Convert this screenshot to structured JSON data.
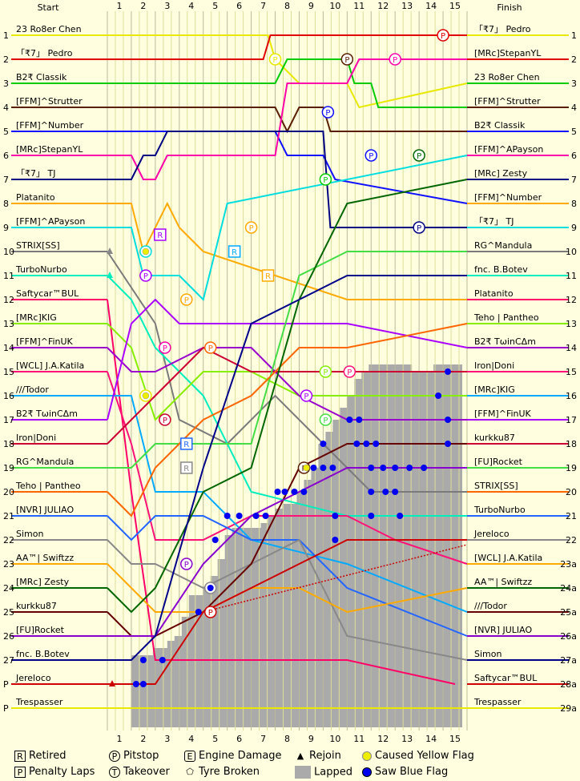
{
  "chart_data": {
    "type": "line",
    "header": {
      "start": "Start",
      "finish": "Finish"
    },
    "laps": [
      "1",
      "2",
      "3",
      "4",
      "5",
      "6",
      "7",
      "8",
      "9",
      "10",
      "11",
      "12",
      "13",
      "14",
      "15"
    ],
    "start_positions": [
      "1",
      "2",
      "3",
      "4",
      "5",
      "6",
      "7",
      "8",
      "9",
      "10",
      "11",
      "12",
      "13",
      "14",
      "15",
      "16",
      "17",
      "18",
      "19",
      "20",
      "21",
      "22",
      "23",
      "24",
      "25",
      "26",
      "27",
      "P",
      "P"
    ],
    "start_drivers": [
      "23 Ro8er Chen",
      "「₹7」 Pedro",
      "B2₹ Classik",
      "[FFM]^Strutter",
      "[FFM]^Number",
      "[MRc]StepanYL",
      "「₹7」 TJ",
      "Platanito",
      "[FFM]^APayson",
      "STRIX[SS]",
      "TurboNurbo",
      "Saftycar™BUL",
      "[MRc]KIG",
      "[FFM]^FinUK",
      "[WCL] J.A.Katila",
      "///Todor",
      "B2₹ TωinCΔm",
      "Iron|Doni",
      "RG^Mandula",
      "Teho | Pantheo",
      "[NVR] JULIAO",
      "Simon",
      "AA™| Swiftzz",
      "[MRc] Zesty",
      "kurkku87",
      "[FU]Rocket",
      "fnc. B.Botev",
      "Jereloco",
      "Trespasser"
    ],
    "finish_positions": [
      "1",
      "2",
      "3",
      "4",
      "5",
      "6",
      "7",
      "8",
      "9",
      "10",
      "11",
      "12",
      "13",
      "14",
      "15",
      "16",
      "17",
      "18",
      "19",
      "20",
      "21",
      "22",
      "23a",
      "24a",
      "25a",
      "26a",
      "27a",
      "28a",
      "29a"
    ],
    "finish_drivers": [
      "「₹7」 Pedro",
      "[MRc]StepanYL",
      "23 Ro8er Chen",
      "[FFM]^Strutter",
      "B2₹ Classik",
      "[FFM]^APayson",
      "[MRc] Zesty",
      "[FFM]^Number",
      "「₹7」 TJ",
      "RG^Mandula",
      "fnc. B.Botev",
      "Platanito",
      "Teho | Pantheo",
      "B2₹ TωinCΔm",
      "Iron|Doni",
      "[MRc]KIG",
      "[FFM]^FinUK",
      "kurkku87",
      "[FU]Rocket",
      "STRIX[SS]",
      "TurboNurbo",
      "Jereloco",
      "[WCL] J.A.Katila",
      "AA™| Swiftzz",
      "///Todor",
      "[NVR] JULIAO",
      "Simon",
      "Saftycar™BUL",
      "Trespasser"
    ],
    "colors": [
      "#e8e800",
      "#e00000",
      "#00cc00",
      "#5a1f00",
      "#1010ff",
      "#ff00aa",
      "#000080",
      "#ffaa00",
      "#00dddd",
      "#7a7a7a",
      "#00eebb",
      "#ff0066",
      "#88ee00",
      "#9900cc",
      "#ff1177",
      "#00aaff",
      "#aa00ff",
      "#cc0033",
      "#44dd44",
      "#ff6600",
      "#2266ff",
      "#888888",
      "#ffaa00",
      "#006600",
      "#660000",
      "#8800cc",
      "#000088",
      "#cc0000",
      "#e8e800"
    ],
    "traces": [
      [
        [
          0,
          1
        ],
        [
          6.7,
          1
        ],
        [
          7,
          2
        ],
        [
          8,
          3
        ],
        [
          10,
          3
        ],
        [
          10.5,
          4
        ],
        [
          15,
          3
        ]
      ],
      [
        [
          0,
          2
        ],
        [
          6.5,
          2
        ],
        [
          6.8,
          1
        ],
        [
          15,
          1
        ]
      ],
      [
        [
          0,
          3
        ],
        [
          7,
          3
        ],
        [
          7.5,
          2
        ],
        [
          10,
          2
        ],
        [
          10.3,
          3
        ],
        [
          11,
          3
        ],
        [
          11.3,
          4
        ],
        [
          15,
          4
        ]
      ],
      [
        [
          0,
          4
        ],
        [
          7,
          4
        ],
        [
          7.5,
          5
        ],
        [
          8,
          4
        ],
        [
          9,
          4
        ],
        [
          9.3,
          5
        ],
        [
          15,
          5
        ]
      ],
      [
        [
          0,
          5
        ],
        [
          7,
          5
        ],
        [
          7.5,
          6
        ],
        [
          9,
          6
        ],
        [
          9.5,
          7
        ],
        [
          15,
          8
        ]
      ],
      [
        [
          0,
          6
        ],
        [
          1,
          6
        ],
        [
          1.5,
          7
        ],
        [
          2,
          7
        ],
        [
          2.5,
          6
        ],
        [
          7,
          6
        ],
        [
          7.5,
          3
        ],
        [
          10,
          3
        ],
        [
          10.5,
          2
        ],
        [
          15,
          2
        ]
      ],
      [
        [
          0,
          7
        ],
        [
          1,
          7
        ],
        [
          1.5,
          6
        ],
        [
          2,
          6
        ],
        [
          2.5,
          5
        ],
        [
          9,
          5
        ],
        [
          9.3,
          9
        ],
        [
          15,
          9
        ]
      ],
      [
        [
          0,
          8
        ],
        [
          1,
          8
        ],
        [
          1.5,
          10
        ],
        [
          2,
          9
        ],
        [
          2.5,
          8
        ],
        [
          3,
          9
        ],
        [
          4,
          10
        ],
        [
          10,
          12
        ],
        [
          15,
          12
        ]
      ],
      [
        [
          0,
          9
        ],
        [
          1,
          9
        ],
        [
          1.5,
          11
        ],
        [
          3,
          11
        ],
        [
          4,
          12
        ],
        [
          5,
          8
        ],
        [
          15,
          6
        ]
      ],
      [
        [
          0,
          10
        ],
        [
          2,
          13
        ],
        [
          3,
          17
        ],
        [
          5,
          18
        ],
        [
          7,
          16
        ],
        [
          9,
          18
        ],
        [
          11,
          20
        ],
        [
          15,
          20
        ]
      ],
      [
        [
          0,
          11
        ],
        [
          1,
          12
        ],
        [
          2,
          14
        ],
        [
          4,
          16
        ],
        [
          6,
          20
        ],
        [
          10,
          21
        ],
        [
          15,
          21
        ]
      ],
      [
        [
          0,
          12
        ],
        [
          1,
          20
        ],
        [
          2,
          27
        ],
        [
          3,
          27
        ],
        [
          5,
          27
        ],
        [
          10,
          27
        ],
        [
          14.5,
          28
        ]
      ],
      [
        [
          0,
          13
        ],
        [
          1,
          14
        ],
        [
          2,
          17
        ],
        [
          4,
          15
        ],
        [
          6,
          15
        ],
        [
          8,
          16
        ],
        [
          10,
          16
        ],
        [
          15,
          16
        ]
      ],
      [
        [
          0,
          14
        ],
        [
          1,
          15
        ],
        [
          2,
          15
        ],
        [
          4,
          14
        ],
        [
          6,
          14
        ],
        [
          8,
          16
        ],
        [
          10,
          17
        ],
        [
          15,
          17
        ]
      ],
      [
        [
          0,
          15
        ],
        [
          1,
          18
        ],
        [
          2,
          22
        ],
        [
          4,
          22
        ],
        [
          6,
          21
        ],
        [
          10,
          21
        ],
        [
          12,
          22
        ],
        [
          15,
          23
        ]
      ],
      [
        [
          0,
          16
        ],
        [
          1,
          16
        ],
        [
          2,
          20
        ],
        [
          4,
          20
        ],
        [
          6,
          22
        ],
        [
          10,
          23
        ],
        [
          15,
          25
        ]
      ],
      [
        [
          0,
          17
        ],
        [
          1,
          13
        ],
        [
          2,
          12
        ],
        [
          3,
          13
        ],
        [
          5,
          13
        ],
        [
          8,
          13
        ],
        [
          10,
          13
        ],
        [
          15,
          14
        ]
      ],
      [
        [
          0,
          18
        ],
        [
          1,
          17
        ],
        [
          2,
          16
        ],
        [
          4,
          14
        ],
        [
          6,
          15
        ],
        [
          10,
          15
        ],
        [
          12,
          15
        ],
        [
          15,
          15
        ]
      ],
      [
        [
          0,
          19
        ],
        [
          1,
          19
        ],
        [
          2,
          18
        ],
        [
          4,
          18
        ],
        [
          6,
          18
        ],
        [
          8,
          11
        ],
        [
          10,
          10
        ],
        [
          15,
          10
        ]
      ],
      [
        [
          0,
          20
        ],
        [
          1,
          21
        ],
        [
          2,
          19
        ],
        [
          4,
          17
        ],
        [
          6,
          16
        ],
        [
          8,
          14
        ],
        [
          10,
          14
        ],
        [
          15,
          13
        ]
      ],
      [
        [
          0,
          21
        ],
        [
          1,
          22
        ],
        [
          2,
          21
        ],
        [
          4,
          21
        ],
        [
          6,
          22
        ],
        [
          8,
          22
        ],
        [
          10,
          24
        ],
        [
          15,
          26
        ]
      ],
      [
        [
          0,
          22
        ],
        [
          1,
          23
        ],
        [
          2,
          23
        ],
        [
          4,
          24
        ],
        [
          6,
          23
        ],
        [
          8,
          22
        ],
        [
          10,
          26
        ],
        [
          15,
          27
        ]
      ],
      [
        [
          0,
          23
        ],
        [
          1,
          24
        ],
        [
          2,
          25
        ],
        [
          4,
          25
        ],
        [
          6,
          24
        ],
        [
          8,
          24
        ],
        [
          10,
          25
        ],
        [
          15,
          24
        ]
      ],
      [
        [
          0,
          24
        ],
        [
          1,
          25
        ],
        [
          2,
          24
        ],
        [
          4,
          20
        ],
        [
          6,
          19
        ],
        [
          8,
          12
        ],
        [
          10,
          8
        ],
        [
          15,
          7
        ]
      ],
      [
        [
          0,
          25
        ],
        [
          1,
          26
        ],
        [
          2,
          26
        ],
        [
          4,
          25
        ],
        [
          6,
          23
        ],
        [
          8,
          19
        ],
        [
          10,
          18
        ],
        [
          15,
          18
        ]
      ],
      [
        [
          0,
          26
        ],
        [
          1,
          26
        ],
        [
          2,
          26
        ],
        [
          4,
          23
        ],
        [
          6,
          21
        ],
        [
          8,
          20
        ],
        [
          10,
          19
        ],
        [
          15,
          19
        ]
      ],
      [
        [
          0,
          27
        ],
        [
          1,
          27
        ],
        [
          2,
          26
        ],
        [
          4,
          19
        ],
        [
          6,
          13
        ],
        [
          8,
          12
        ],
        [
          10,
          11
        ],
        [
          15,
          11
        ]
      ],
      [
        [
          0,
          28
        ],
        [
          1,
          28
        ],
        [
          2,
          28
        ],
        [
          4,
          25
        ],
        [
          6,
          24
        ],
        [
          8,
          23
        ],
        [
          10,
          22
        ],
        [
          15,
          22
        ]
      ],
      [
        [
          0,
          29
        ],
        [
          0.3,
          29
        ],
        [
          15,
          29
        ]
      ]
    ],
    "lapped_heights": [
      27.5,
      27.5,
      27.5,
      27.5,
      27.5,
      27.5,
      27.5,
      27.5,
      27.5,
      27.5,
      27.5,
      27.5,
      27.5,
      27.5,
      27.5,
      27.5,
      27.5,
      27.5,
      27.5,
      27.5,
      27.5,
      27.5,
      27.5,
      27.5,
      27.5,
      27.5,
      27.5,
      27.5,
      27.5,
      27.5,
      27.5,
      27.5,
      27.5,
      27.5,
      27.5,
      27.5,
      27.5,
      27.5,
      27.5,
      27.5,
      27.5,
      27.5,
      27.5,
      27.5,
      27.5,
      27.5,
      27.5,
      27.5,
      27.5,
      27.5
    ],
    "lapped_steps": [
      [
        1.0,
        26.8
      ],
      [
        1.3,
        26.8
      ],
      [
        1.6,
        26.8
      ],
      [
        1.9,
        26.5
      ],
      [
        2.2,
        26.5
      ],
      [
        2.5,
        26.2
      ],
      [
        2.8,
        26.0
      ],
      [
        3.1,
        25.2
      ],
      [
        3.4,
        24.3
      ],
      [
        3.7,
        24.3
      ],
      [
        4.0,
        24.0
      ],
      [
        4.3,
        23.5
      ],
      [
        4.6,
        22.8
      ],
      [
        4.9,
        21.8
      ],
      [
        5.2,
        21.5
      ],
      [
        5.5,
        21.5
      ],
      [
        5.8,
        21.5
      ],
      [
        6.1,
        21.5
      ],
      [
        6.4,
        21.3
      ],
      [
        6.7,
        21.0
      ],
      [
        7.0,
        20.7
      ],
      [
        7.3,
        20.5
      ],
      [
        7.6,
        20.5
      ],
      [
        7.9,
        20.0
      ],
      [
        8.2,
        19.5
      ],
      [
        8.5,
        19.0
      ],
      [
        8.8,
        18.0
      ],
      [
        9.1,
        17.5
      ],
      [
        9.4,
        17.0
      ],
      [
        9.7,
        16.5
      ],
      [
        10.0,
        16.0
      ],
      [
        10.3,
        15.3
      ],
      [
        10.6,
        15.0
      ],
      [
        10.9,
        14.7
      ],
      [
        11.2,
        14.7
      ],
      [
        11.5,
        14.7
      ],
      [
        11.8,
        14.7
      ],
      [
        12.1,
        14.7
      ],
      [
        12.4,
        14.7
      ],
      [
        12.7,
        15.0
      ],
      [
        13.0,
        15.0
      ],
      [
        13.3,
        15.0
      ],
      [
        13.6,
        14.7
      ],
      [
        13.9,
        14.7
      ],
      [
        14.2,
        14.7
      ],
      [
        14.5,
        14.7
      ],
      [
        14.8,
        29.5
      ]
    ],
    "markers": [
      {
        "lap": 14,
        "pos": 1,
        "type": "P",
        "color": "#e00000"
      },
      {
        "lap": 10,
        "pos": 2,
        "type": "P",
        "color": "#5a1f00"
      },
      {
        "lap": 12,
        "pos": 2,
        "type": "P",
        "color": "#ff00aa"
      },
      {
        "lap": 7,
        "pos": 2,
        "type": "P",
        "color": "#e8e800"
      },
      {
        "lap": 9.2,
        "pos": 4.2,
        "type": "P",
        "color": "#1010ff"
      },
      {
        "lap": 11,
        "pos": 6,
        "type": "P",
        "color": "#1010ff"
      },
      {
        "lap": 13,
        "pos": 6,
        "type": "P",
        "color": "#006600"
      },
      {
        "lap": 13,
        "pos": 9,
        "type": "P",
        "color": "#000080"
      },
      {
        "lap": 6,
        "pos": 9,
        "type": "P",
        "color": "#ffaa00"
      },
      {
        "lap": 9.1,
        "pos": 7,
        "type": "P",
        "color": "#00cc00"
      },
      {
        "lap": 1.6,
        "pos": 10,
        "type": "P",
        "color": "#00dddd"
      },
      {
        "lap": 1.6,
        "pos": 11,
        "type": "P",
        "color": "#aa00ff"
      },
      {
        "lap": 2.4,
        "pos": 14,
        "type": "P",
        "color": "#ff00aa"
      },
      {
        "lap": 3.3,
        "pos": 12,
        "type": "P",
        "color": "#ffaa00"
      },
      {
        "lap": 4.3,
        "pos": 14,
        "type": "P",
        "color": "#ff6600"
      },
      {
        "lap": 2.4,
        "pos": 17,
        "type": "P",
        "color": "#cc0033"
      },
      {
        "lap": 1.6,
        "pos": 16,
        "type": "P",
        "color": "#e8e800"
      },
      {
        "lap": 8.3,
        "pos": 16,
        "type": "P",
        "color": "#aa00ff"
      },
      {
        "lap": 9.1,
        "pos": 15,
        "type": "P",
        "color": "#88ee00"
      },
      {
        "lap": 10.1,
        "pos": 15,
        "type": "P",
        "color": "#ff1177"
      },
      {
        "lap": 9.1,
        "pos": 17,
        "type": "P",
        "color": "#44dd44"
      },
      {
        "lap": 8.2,
        "pos": 19,
        "type": "P",
        "color": "#5a1f00"
      },
      {
        "lap": 3.3,
        "pos": 23,
        "type": "P",
        "color": "#8800cc"
      },
      {
        "lap": 4.3,
        "pos": 24,
        "type": "P",
        "color": "#888888"
      },
      {
        "lap": 4.3,
        "pos": 25,
        "type": "P",
        "color": "#cc0000"
      },
      {
        "lap": 2.2,
        "pos": 9.3,
        "type": "R",
        "color": "#aa00ff"
      },
      {
        "lap": 5.3,
        "pos": 10,
        "type": "R",
        "color": "#00aaff"
      },
      {
        "lap": 6.7,
        "pos": 11,
        "type": "R",
        "color": "#ffaa00"
      },
      {
        "lap": 3.3,
        "pos": 18,
        "type": "R",
        "color": "#2266ff"
      },
      {
        "lap": 3.3,
        "pos": 19,
        "type": "R",
        "color": "#888888"
      }
    ]
  },
  "legend": {
    "retired": "Retired",
    "pitstop": "Pitstop",
    "engine": "Engine Damage",
    "rejoin": "Rejoin",
    "yellow": "Caused Yellow Flag",
    "penalty": "Penalty Laps",
    "takeover": "Takeover",
    "tyre": "Tyre Broken",
    "lapped": "Lapped",
    "blue": "Saw Blue Flag",
    "ico_r": "R",
    "ico_p": "P",
    "ico_t": "T",
    "ico_e": "E"
  }
}
